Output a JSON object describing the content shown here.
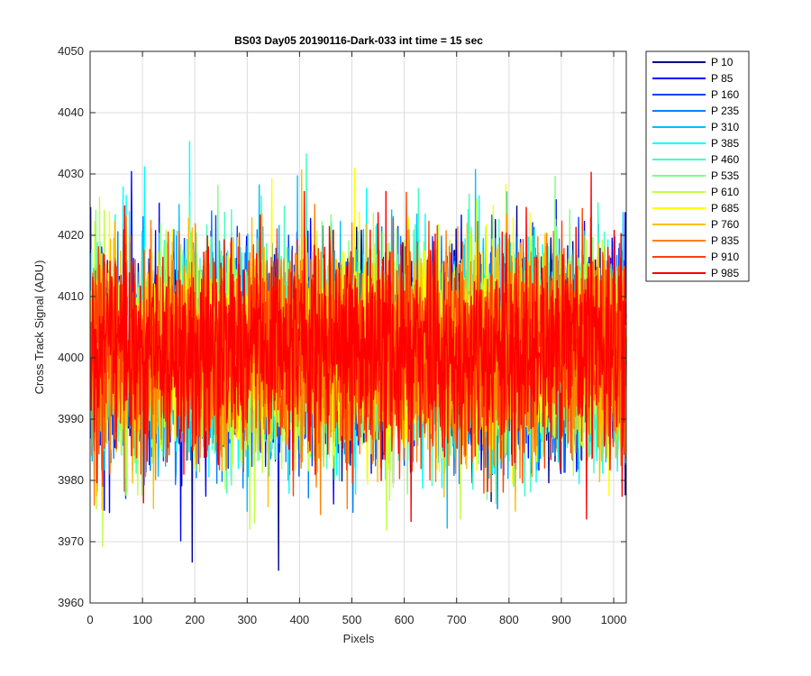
{
  "chart_data": {
    "type": "line",
    "title": "BS03 Day05 20190116-Dark-033 int time = 15 sec",
    "xlabel": "Pixels",
    "ylabel": "Cross Track Signal (ADU)",
    "xlim": [
      0,
      1024
    ],
    "ylim": [
      3960,
      4050
    ],
    "xticks": [
      0,
      100,
      200,
      300,
      400,
      500,
      600,
      700,
      800,
      900,
      1000
    ],
    "yticks": [
      3960,
      3970,
      3980,
      3990,
      4000,
      4010,
      4020,
      4030,
      4040,
      4050
    ],
    "grid": true,
    "legend_position": "outside-top-right",
    "series_mean_approx": 4001,
    "series_min_approx": 3962,
    "series_max_approx": 4041,
    "series": [
      {
        "name": "P 10",
        "color": "#00008f"
      },
      {
        "name": "P 85",
        "color": "#0000ff"
      },
      {
        "name": "P 160",
        "color": "#0040ff"
      },
      {
        "name": "P 235",
        "color": "#0080ff"
      },
      {
        "name": "P 310",
        "color": "#00bfff"
      },
      {
        "name": "P 385",
        "color": "#00ffff"
      },
      {
        "name": "P 460",
        "color": "#40ffbf"
      },
      {
        "name": "P 535",
        "color": "#80ff80"
      },
      {
        "name": "P 610",
        "color": "#bfff40"
      },
      {
        "name": "P 685",
        "color": "#ffff00"
      },
      {
        "name": "P 760",
        "color": "#ffbf00"
      },
      {
        "name": "P 835",
        "color": "#ff8000"
      },
      {
        "name": "P 910",
        "color": "#ff4000"
      },
      {
        "name": "P 985",
        "color": "#ff0000"
      }
    ]
  }
}
